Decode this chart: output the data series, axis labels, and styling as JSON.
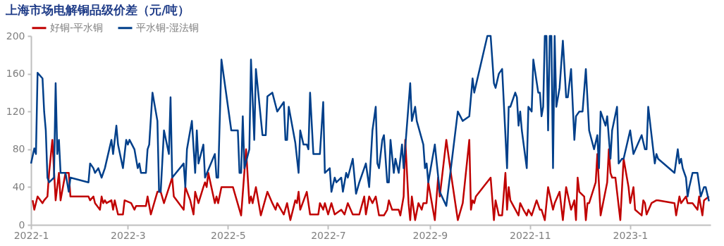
{
  "chart_data": {
    "type": "line",
    "title": "上海市场电解铜品级价差（元/吨）",
    "legend": "top",
    "grid": false,
    "marker": "none",
    "line_style": "solid",
    "xlim": [
      "2022-01-01",
      "2023-02-19"
    ],
    "xticks": [
      {
        "value": "2022-01-01",
        "label": "2022-1"
      },
      {
        "value": "2022-03-01",
        "label": "2022-3"
      },
      {
        "value": "2022-05-01",
        "label": "2022-5"
      },
      {
        "value": "2022-07-01",
        "label": "2022-7"
      },
      {
        "value": "2022-09-01",
        "label": "2022-9"
      },
      {
        "value": "2022-11-01",
        "label": "2022-11"
      },
      {
        "value": "2023-01-01",
        "label": "2023-1"
      }
    ],
    "ylim": [
      0,
      200
    ],
    "yticks": [
      0,
      40,
      80,
      120,
      160,
      200
    ],
    "series": [
      {
        "name": "好铜-平水铜",
        "color": "#c00000",
        "x": [
          "2022-01-02",
          "2022-01-03",
          "2022-01-05",
          "2022-01-08",
          "2022-01-09",
          "2022-01-11",
          "2022-01-12",
          "2022-01-14",
          "2022-01-16",
          "2022-01-18",
          "2022-01-19",
          "2022-01-22",
          "2022-01-24",
          "2022-01-25",
          "2022-02-05",
          "2022-02-06",
          "2022-02-08",
          "2022-02-09",
          "2022-02-12",
          "2022-02-13",
          "2022-02-14",
          "2022-02-15",
          "2022-02-16",
          "2022-02-19",
          "2022-02-20",
          "2022-02-21",
          "2022-02-23",
          "2022-02-26",
          "2022-02-27",
          "2022-03-03",
          "2022-03-05",
          "2022-03-06",
          "2022-03-12",
          "2022-03-13",
          "2022-03-15",
          "2022-03-19",
          "2022-03-21",
          "2022-03-23",
          "2022-03-28",
          "2022-03-29",
          "2022-04-04",
          "2022-04-05",
          "2022-04-08",
          "2022-04-10",
          "2022-04-11",
          "2022-04-13",
          "2022-04-16",
          "2022-04-17",
          "2022-04-18",
          "2022-04-19",
          "2022-04-23",
          "2022-04-24",
          "2022-04-25",
          "2022-04-27",
          "2022-05-04",
          "2022-05-09",
          "2022-05-12",
          "2022-05-14",
          "2022-05-15",
          "2022-05-16",
          "2022-05-18",
          "2022-05-21",
          "2022-05-25",
          "2022-05-28",
          "2022-05-30",
          "2022-05-31",
          "2022-06-04",
          "2022-06-06",
          "2022-06-08",
          "2022-06-11",
          "2022-06-12",
          "2022-06-13",
          "2022-06-14",
          "2022-06-18",
          "2022-06-20",
          "2022-06-25",
          "2022-06-26",
          "2022-06-28",
          "2022-06-29",
          "2022-07-01",
          "2022-07-03",
          "2022-07-05",
          "2022-07-09",
          "2022-07-11",
          "2022-07-13",
          "2022-07-16",
          "2022-07-20",
          "2022-07-23",
          "2022-07-24",
          "2022-07-26",
          "2022-07-28",
          "2022-07-30",
          "2022-08-01",
          "2022-08-04",
          "2022-08-06",
          "2022-08-07",
          "2022-08-09",
          "2022-08-13",
          "2022-08-14",
          "2022-08-16",
          "2022-08-17",
          "2022-08-19",
          "2022-08-20",
          "2022-08-21",
          "2022-08-23",
          "2022-08-25",
          "2022-08-27",
          "2022-08-28",
          "2022-08-30",
          "2022-08-31",
          "2022-09-04",
          "2022-09-06",
          "2022-09-07",
          "2022-09-11",
          "2022-09-14",
          "2022-09-18",
          "2022-09-21",
          "2022-09-25",
          "2022-09-26",
          "2022-09-27",
          "2022-09-28",
          "2022-09-29",
          "2022-10-08",
          "2022-10-10",
          "2022-10-11",
          "2022-10-13",
          "2022-10-15",
          "2022-10-17",
          "2022-10-18",
          "2022-10-19",
          "2022-10-20",
          "2022-10-25",
          "2022-10-26",
          "2022-10-28",
          "2022-10-30",
          "2022-10-31",
          "2022-11-02",
          "2022-11-05",
          "2022-11-07",
          "2022-11-08",
          "2022-11-10",
          "2022-11-12",
          "2022-11-15",
          "2022-11-16",
          "2022-11-19",
          "2022-11-21",
          "2022-11-23",
          "2022-11-26",
          "2022-11-28",
          "2022-11-29",
          "2022-11-30",
          "2022-12-01",
          "2022-12-04",
          "2022-12-05",
          "2022-12-06",
          "2022-12-07",
          "2022-12-11",
          "2022-12-12",
          "2022-12-14",
          "2022-12-18",
          "2022-12-19",
          "2022-12-20",
          "2022-12-21",
          "2022-12-23",
          "2022-12-26",
          "2022-12-28",
          "2022-12-31",
          "2023-01-01",
          "2023-01-03",
          "2023-01-04",
          "2023-01-08",
          "2023-01-09",
          "2023-01-10",
          "2023-01-11",
          "2023-01-14",
          "2023-01-17",
          "2023-01-18",
          "2023-01-28",
          "2023-01-29",
          "2023-01-31",
          "2023-02-01",
          "2023-02-04",
          "2023-02-05",
          "2023-02-08",
          "2023-02-11",
          "2023-02-12",
          "2023-02-14",
          "2023-02-15",
          "2023-02-18"
        ],
        "values": [
          26,
          16,
          30,
          23,
          26,
          30,
          55,
          90,
          26,
          55,
          26,
          55,
          55,
          30,
          30,
          26,
          30,
          23,
          16,
          30,
          23,
          26,
          23,
          26,
          16,
          26,
          11,
          11,
          26,
          23,
          16,
          20,
          20,
          30,
          11,
          35,
          35,
          23,
          50,
          30,
          16,
          40,
          26,
          11,
          35,
          23,
          40,
          45,
          40,
          55,
          23,
          30,
          23,
          40,
          40,
          10,
          80,
          23,
          30,
          23,
          40,
          10,
          35,
          23,
          16,
          23,
          11,
          23,
          5,
          26,
          23,
          35,
          16,
          35,
          11,
          11,
          23,
          16,
          23,
          11,
          23,
          11,
          16,
          11,
          23,
          11,
          11,
          30,
          11,
          30,
          23,
          30,
          10,
          10,
          16,
          26,
          16,
          16,
          10,
          30,
          90,
          23,
          5,
          30,
          5,
          23,
          16,
          23,
          23,
          45,
          5,
          50,
          30,
          90,
          52,
          5,
          23,
          90,
          16,
          26,
          23,
          30,
          50,
          5,
          26,
          10,
          10,
          55,
          16,
          40,
          26,
          10,
          23,
          16,
          10,
          16,
          10,
          26,
          16,
          16,
          5,
          40,
          16,
          23,
          35,
          5,
          40,
          16,
          26,
          5,
          50,
          35,
          30,
          5,
          23,
          23,
          45,
          75,
          10,
          45,
          80,
          55,
          50,
          50,
          5,
          70,
          40,
          23,
          40,
          16,
          10,
          26,
          23,
          11,
          23,
          26,
          26,
          23,
          10,
          30,
          23,
          30,
          23,
          23,
          16,
          30,
          10,
          26,
          30
        ]
      },
      {
        "name": "平水铜-湿法铜",
        "color": "#003f8a",
        "x": [
          "2022-01-01",
          "2022-01-03",
          "2022-01-04",
          "2022-01-05",
          "2022-01-08",
          "2022-01-09",
          "2022-01-10",
          "2022-01-11",
          "2022-01-12",
          "2022-01-15",
          "2022-01-16",
          "2022-01-17",
          "2022-01-18",
          "2022-01-19",
          "2022-01-22",
          "2022-01-24",
          "2022-01-25",
          "2022-02-05",
          "2022-02-06",
          "2022-02-08",
          "2022-02-09",
          "2022-02-11",
          "2022-02-13",
          "2022-02-15",
          "2022-02-19",
          "2022-02-20",
          "2022-02-22",
          "2022-02-23",
          "2022-02-26",
          "2022-02-28",
          "2022-03-01",
          "2022-03-02",
          "2022-03-05",
          "2022-03-07",
          "2022-03-08",
          "2022-03-09",
          "2022-03-12",
          "2022-03-13",
          "2022-03-14",
          "2022-03-16",
          "2022-03-19",
          "2022-03-20",
          "2022-03-21",
          "2022-03-23",
          "2022-03-26",
          "2022-03-27",
          "2022-03-28",
          "2022-04-04",
          "2022-04-05",
          "2022-04-06",
          "2022-04-09",
          "2022-04-11",
          "2022-04-12",
          "2022-04-13",
          "2022-04-16",
          "2022-04-17",
          "2022-04-23",
          "2022-04-24",
          "2022-04-25",
          "2022-04-27",
          "2022-05-03",
          "2022-05-04",
          "2022-05-07",
          "2022-05-08",
          "2022-05-09",
          "2022-05-10",
          "2022-05-11",
          "2022-05-14",
          "2022-05-15",
          "2022-05-17",
          "2022-05-18",
          "2022-05-22",
          "2022-05-24",
          "2022-05-25",
          "2022-05-28",
          "2022-05-31",
          "2022-06-04",
          "2022-06-05",
          "2022-06-06",
          "2022-06-07",
          "2022-06-11",
          "2022-06-13",
          "2022-06-14",
          "2022-06-16",
          "2022-06-18",
          "2022-06-19",
          "2022-06-20",
          "2022-06-22",
          "2022-06-26",
          "2022-06-28",
          "2022-06-29",
          "2022-07-02",
          "2022-07-03",
          "2022-07-05",
          "2022-07-06",
          "2022-07-09",
          "2022-07-10",
          "2022-07-12",
          "2022-07-13",
          "2022-07-16",
          "2022-07-18",
          "2022-07-20",
          "2022-07-24",
          "2022-07-26",
          "2022-07-28",
          "2022-07-30",
          "2022-07-31",
          "2022-08-01",
          "2022-08-03",
          "2022-08-04",
          "2022-08-06",
          "2022-08-07",
          "2022-08-08",
          "2022-08-10",
          "2022-08-11",
          "2022-08-13",
          "2022-08-15",
          "2022-08-16",
          "2022-08-20",
          "2022-08-21",
          "2022-08-23",
          "2022-08-24",
          "2022-08-28",
          "2022-08-29",
          "2022-08-30",
          "2022-08-31",
          "2022-09-04",
          "2022-09-07",
          "2022-09-11",
          "2022-09-18",
          "2022-09-21",
          "2022-09-25",
          "2022-09-27",
          "2022-09-28",
          "2022-10-06",
          "2022-10-08",
          "2022-10-10",
          "2022-10-11",
          "2022-10-13",
          "2022-10-15",
          "2022-10-18",
          "2022-10-19",
          "2022-10-20",
          "2022-10-23",
          "2022-10-24",
          "2022-10-25",
          "2022-10-26",
          "2022-10-27",
          "2022-10-30",
          "2022-10-31",
          "2022-11-02",
          "2022-11-03",
          "2022-11-06",
          "2022-11-07",
          "2022-11-08",
          "2022-11-09",
          "2022-11-10",
          "2022-11-11",
          "2022-11-12",
          "2022-11-13",
          "2022-11-14",
          "2022-11-15",
          "2022-11-16",
          "2022-11-17",
          "2022-11-19",
          "2022-11-21",
          "2022-11-23",
          "2022-11-24",
          "2022-11-26",
          "2022-11-28",
          "2022-11-29",
          "2022-12-01",
          "2022-12-03",
          "2022-12-05",
          "2022-12-07",
          "2022-12-10",
          "2022-12-12",
          "2022-12-13",
          "2022-12-14",
          "2022-12-17",
          "2022-12-18",
          "2022-12-20",
          "2022-12-21",
          "2022-12-24",
          "2022-12-25",
          "2022-12-27",
          "2022-12-28",
          "2023-01-01",
          "2023-01-03",
          "2023-01-08",
          "2023-01-10",
          "2023-01-11",
          "2023-01-12",
          "2023-01-14",
          "2023-01-16",
          "2023-01-17",
          "2023-01-18",
          "2023-01-28",
          "2023-01-30",
          "2023-01-31",
          "2023-02-01",
          "2023-02-02",
          "2023-02-04",
          "2023-02-05",
          "2023-02-06",
          "2023-02-08",
          "2023-02-11",
          "2023-02-13",
          "2023-02-15",
          "2023-02-16",
          "2023-02-18"
        ],
        "values": [
          65,
          81,
          75,
          161,
          155,
          120,
          100,
          50,
          45,
          50,
          150,
          75,
          90,
          55,
          55,
          35,
          50,
          45,
          65,
          60,
          55,
          60,
          50,
          60,
          90,
          75,
          105,
          85,
          60,
          90,
          85,
          90,
          80,
          60,
          65,
          55,
          55,
          80,
          85,
          140,
          110,
          35,
          35,
          100,
          75,
          135,
          50,
          65,
          40,
          80,
          110,
          55,
          100,
          65,
          85,
          50,
          75,
          50,
          50,
          175,
          100,
          100,
          100,
          55,
          55,
          115,
          60,
          80,
          175,
          90,
          165,
          95,
          95,
          136,
          140,
          120,
          130,
          90,
          90,
          125,
          87,
          55,
          100,
          85,
          85,
          80,
          140,
          75,
          75,
          130,
          55,
          60,
          35,
          50,
          45,
          50,
          35,
          55,
          50,
          70,
          33,
          45,
          65,
          40,
          100,
          125,
          65,
          60,
          90,
          95,
          45,
          45,
          90,
          55,
          70,
          55,
          85,
          60,
          150,
          110,
          125,
          110,
          85,
          60,
          65,
          45,
          85,
          35,
          20,
          120,
          110,
          115,
          155,
          140,
          200,
          200,
          150,
          145,
          160,
          165,
          60,
          125,
          125,
          140,
          135,
          105,
          120,
          100,
          60,
          125,
          120,
          175,
          140,
          140,
          115,
          125,
          200,
          200,
          100,
          200,
          200,
          60,
          200,
          125,
          145,
          195,
          135,
          135,
          165,
          90,
          115,
          120,
          120,
          165,
          100,
          80,
          95,
          60,
          120,
          105,
          115,
          70,
          100,
          125,
          65,
          70,
          70,
          100,
          75,
          95,
          80,
          80,
          125,
          95,
          65,
          75,
          70,
          55,
          80,
          65,
          70,
          60,
          50,
          30,
          40,
          55,
          55,
          30,
          40,
          40,
          25
        ]
      }
    ]
  }
}
